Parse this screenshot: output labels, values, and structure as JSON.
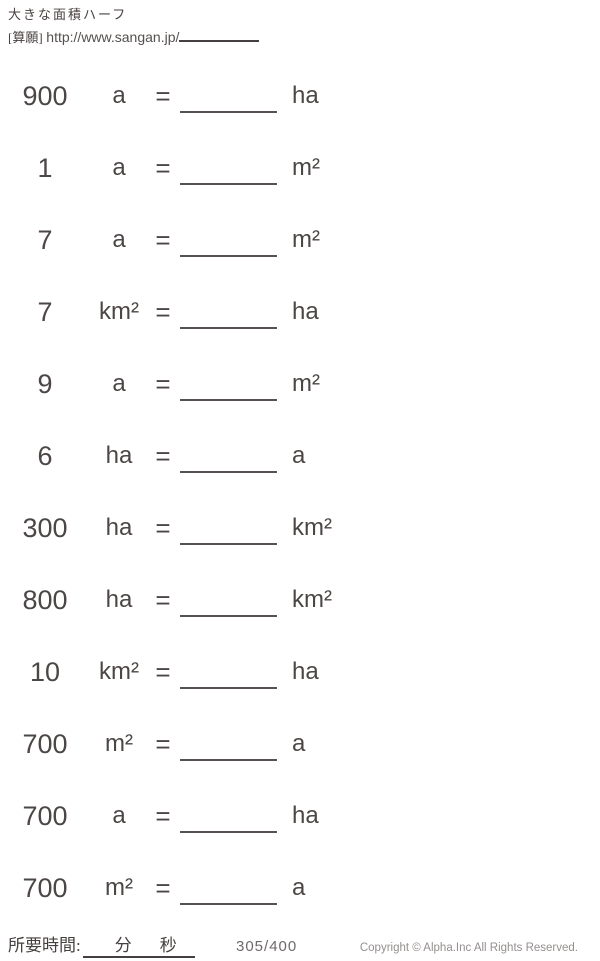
{
  "header": {
    "title": "大きな面積ハーフ",
    "source_label": "[算願]",
    "source_url": "http://www.sangan.jp/"
  },
  "labels": {
    "equals": "="
  },
  "problems": [
    {
      "value": "900",
      "unit": "a",
      "answer_unit": "ha"
    },
    {
      "value": "1",
      "unit": "a",
      "answer_unit": "m²"
    },
    {
      "value": "7",
      "unit": "a",
      "answer_unit": "m²"
    },
    {
      "value": "7",
      "unit": "km²",
      "answer_unit": "ha"
    },
    {
      "value": "9",
      "unit": "a",
      "answer_unit": "m²"
    },
    {
      "value": "6",
      "unit": "ha",
      "answer_unit": "a"
    },
    {
      "value": "300",
      "unit": "ha",
      "answer_unit": "km²"
    },
    {
      "value": "800",
      "unit": "ha",
      "answer_unit": "km²"
    },
    {
      "value": "10",
      "unit": "km²",
      "answer_unit": "ha"
    },
    {
      "value": "700",
      "unit": "m²",
      "answer_unit": "a"
    },
    {
      "value": "700",
      "unit": "a",
      "answer_unit": "ha"
    },
    {
      "value": "700",
      "unit": "m²",
      "answer_unit": "a"
    }
  ],
  "footer": {
    "time_label": "所要時間:",
    "minutes_label": "分",
    "seconds_label": "秒",
    "page_number": "305/400",
    "copyright": "Copyright © Alpha.Inc All Rights Reserved."
  },
  "colors": {
    "text": "#4c4645",
    "line": "#575050",
    "muted": "#94908f"
  }
}
